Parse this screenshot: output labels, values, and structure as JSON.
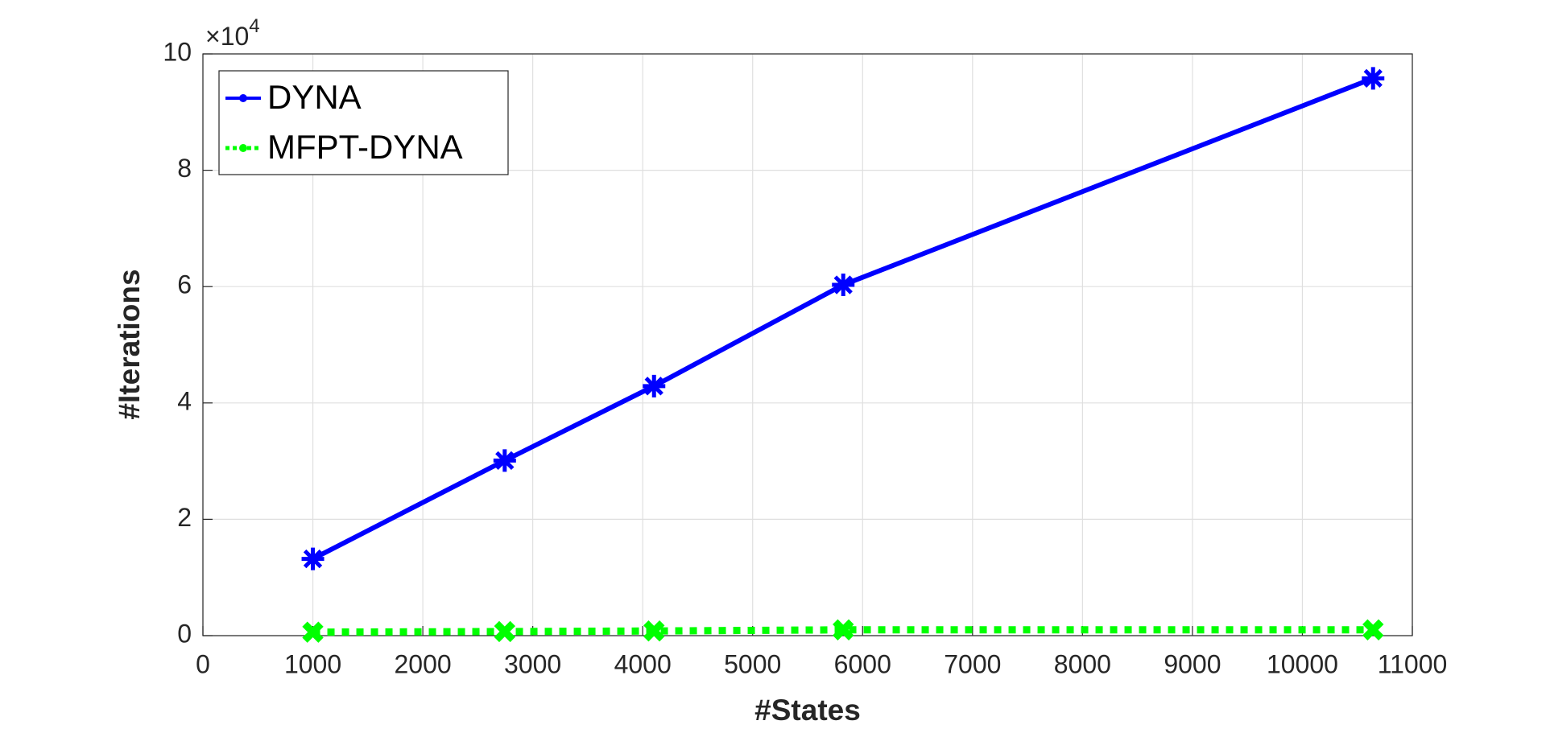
{
  "chart_data": {
    "type": "line",
    "xlabel": "#States",
    "ylabel": "#Iterations",
    "y_multiplier": "×10",
    "y_multiplier_exponent": "4",
    "x": [
      1000,
      2745,
      4103,
      5824,
      10643
    ],
    "series": [
      {
        "name": "DYNA",
        "color": "#0000ff",
        "values": [
          1.32,
          3.01,
          4.29,
          6.03,
          9.58
        ]
      },
      {
        "name": "MFPT-DYNA",
        "color": "#00ff00",
        "values": [
          0.06,
          0.07,
          0.08,
          0.1,
          0.1
        ]
      }
    ],
    "xlim": [
      0,
      11000
    ],
    "xticks": [
      0,
      1000,
      2000,
      3000,
      4000,
      5000,
      6000,
      7000,
      8000,
      9000,
      10000,
      11000
    ],
    "ylim": [
      0,
      10
    ],
    "yticks": [
      0,
      2,
      4,
      6,
      8,
      10
    ],
    "grid": true,
    "legend": "upper-left"
  }
}
